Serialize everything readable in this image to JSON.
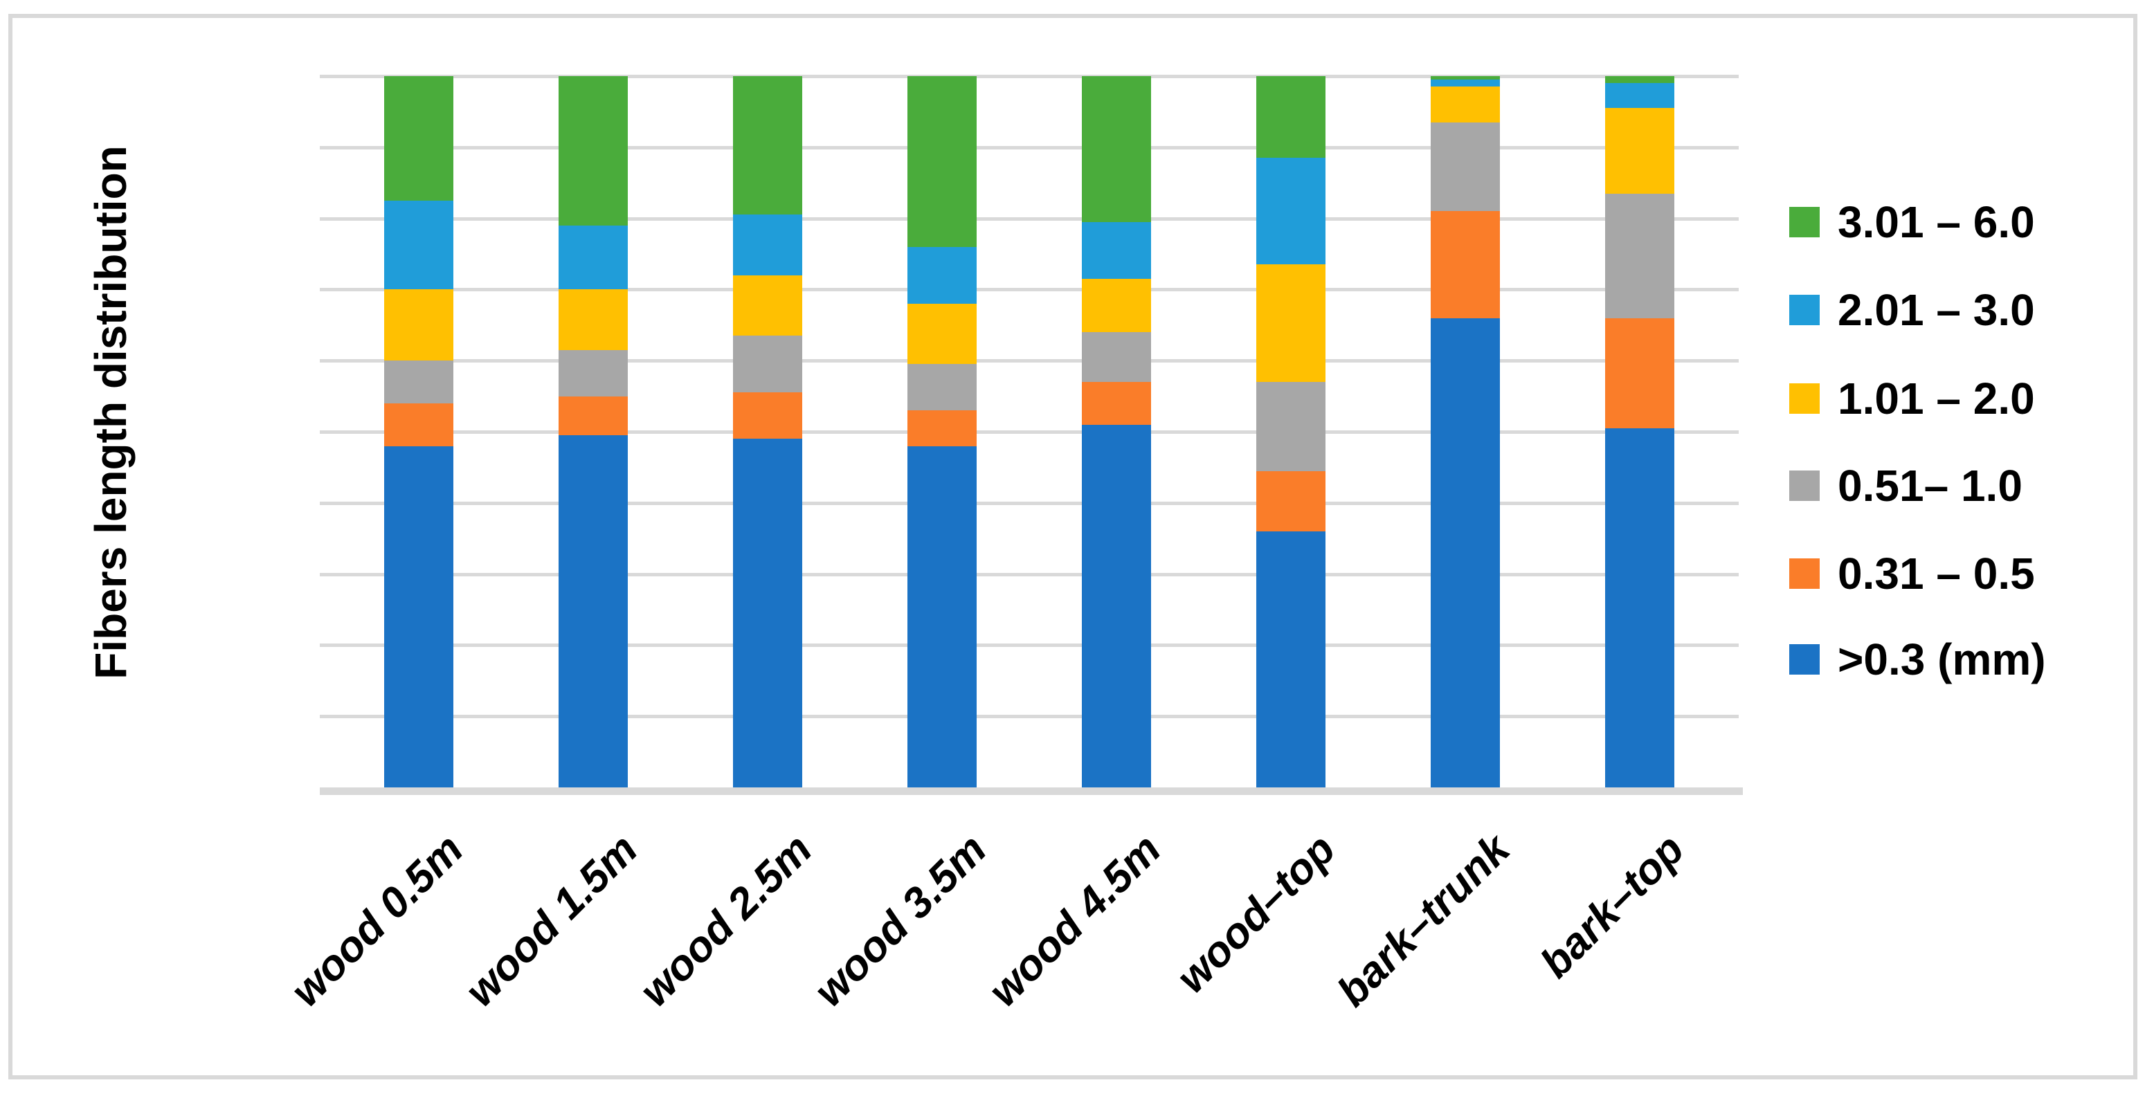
{
  "chart_data": {
    "type": "bar",
    "stacked": true,
    "percent_stacked": true,
    "title": "",
    "ylabel": "Fibers length distribution",
    "xlabel": "",
    "ylim": [
      0,
      100
    ],
    "ytick_step": 10,
    "ytick_labels": [
      "0%",
      "10%",
      "20%",
      "30%",
      "40%",
      "50%",
      "60%",
      "70%",
      "80%",
      "90%",
      "100%"
    ],
    "grid": true,
    "legend_position": "right",
    "categories": [
      "wood 0.5m",
      "wood 1.5m",
      "wood 2.5m",
      "wood 3.5m",
      "wood 4.5m",
      "wood–top",
      "bark–trunk",
      "bark–top"
    ],
    "series": [
      {
        "name": ">0.3 (mm)",
        "color": "#1B73C5",
        "values": [
          48,
          49.5,
          49,
          48,
          51,
          36,
          66,
          50.5
        ]
      },
      {
        "name": "0.31 – 0.5",
        "color": "#FA7D29",
        "values": [
          6,
          5.5,
          6.5,
          5,
          6,
          8.5,
          15,
          15.5
        ]
      },
      {
        "name": "0.51– 1.0",
        "color": "#A7A7A7",
        "values": [
          6,
          6.5,
          8,
          6.5,
          7,
          12.5,
          12.5,
          17.5
        ]
      },
      {
        "name": "1.01 – 2.0",
        "color": "#FFC001",
        "values": [
          10,
          8.5,
          8.5,
          8.5,
          7.5,
          16.5,
          5,
          12
        ]
      },
      {
        "name": "2.01 – 3.0",
        "color": "#209DD9",
        "values": [
          12.5,
          9,
          8.5,
          8,
          8,
          15,
          1,
          3.5
        ]
      },
      {
        "name": "3.01 – 6.0",
        "color": "#4AAC3B",
        "values": [
          17.5,
          21,
          19.5,
          24,
          20.5,
          11.5,
          0.5,
          1
        ]
      }
    ],
    "legend_entries_top_to_bottom": [
      "3.01 – 6.0",
      "2.01 – 3.0",
      "1.01 – 2.0",
      "0.51– 1.0",
      "0.31 – 0.5",
      ">0.3 (mm)"
    ]
  }
}
